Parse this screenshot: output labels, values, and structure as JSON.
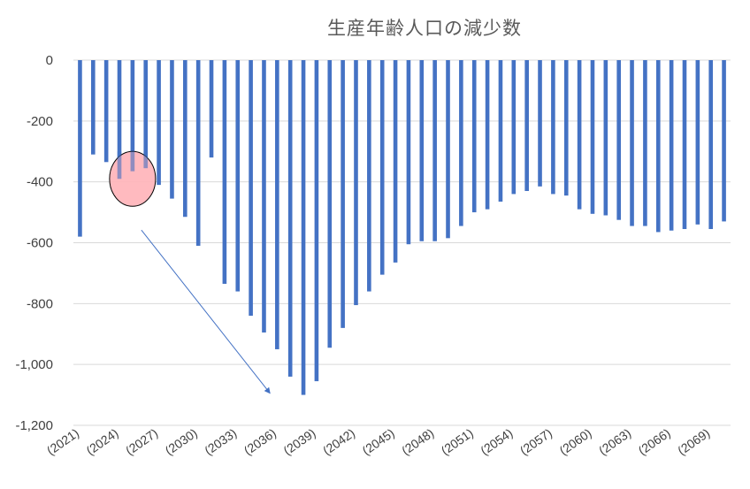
{
  "chart_data": {
    "type": "bar",
    "title": "生産年齢人口の減少数",
    "ylim": [
      -1200,
      0
    ],
    "yticks": [
      0,
      -200,
      -400,
      -600,
      -800,
      -1000,
      -1200
    ],
    "ytick_labels": [
      "0",
      "-200",
      "-400",
      "-600",
      "-800",
      "-1,000",
      "-1,200"
    ],
    "grid": true,
    "bar_color": "#4472C4",
    "categories": [
      "(2021)",
      "(2022)",
      "(2023)",
      "(2024)",
      "(2025)",
      "(2026)",
      "(2027)",
      "(2028)",
      "(2029)",
      "(2030)",
      "(2031)",
      "(2032)",
      "(2033)",
      "(2034)",
      "(2035)",
      "(2036)",
      "(2037)",
      "(2038)",
      "(2039)",
      "(2040)",
      "(2041)",
      "(2042)",
      "(2043)",
      "(2044)",
      "(2045)",
      "(2046)",
      "(2047)",
      "(2048)",
      "(2049)",
      "(2050)",
      "(2051)",
      "(2052)",
      "(2053)",
      "(2054)",
      "(2055)",
      "(2056)",
      "(2057)",
      "(2058)",
      "(2059)",
      "(2060)",
      "(2061)",
      "(2062)",
      "(2063)",
      "(2064)",
      "(2065)",
      "(2066)",
      "(2067)",
      "(2068)",
      "(2069)",
      "(2070)"
    ],
    "xtick_labels": [
      "(2021)",
      "(2024)",
      "(2027)",
      "(2030)",
      "(2033)",
      "(2036)",
      "(2039)",
      "(2042)",
      "(2045)",
      "(2048)",
      "(2051)",
      "(2054)",
      "(2057)",
      "(2060)",
      "(2063)",
      "(2066)",
      "(2069)"
    ],
    "values": [
      -580,
      -310,
      -335,
      -390,
      -365,
      -355,
      -410,
      -455,
      -515,
      -610,
      -320,
      -735,
      -760,
      -840,
      -895,
      -950,
      -1040,
      -1100,
      -1055,
      -945,
      -880,
      -805,
      -760,
      -705,
      -665,
      -605,
      -595,
      -595,
      -585,
      -545,
      -500,
      -490,
      -465,
      -440,
      -430,
      -415,
      -440,
      -445,
      -490,
      -505,
      -510,
      -525,
      -545,
      -545,
      -565,
      -560,
      -555,
      -540,
      -555,
      -530
    ],
    "annotations": [
      {
        "type": "ellipse",
        "fill": "#FFB3B8",
        "stroke": "#000000",
        "covers_categories": [
          "(2024)",
          "(2025)",
          "(2026)"
        ]
      },
      {
        "type": "arrow",
        "color": "#4472C4",
        "direction": "down-right"
      }
    ]
  }
}
